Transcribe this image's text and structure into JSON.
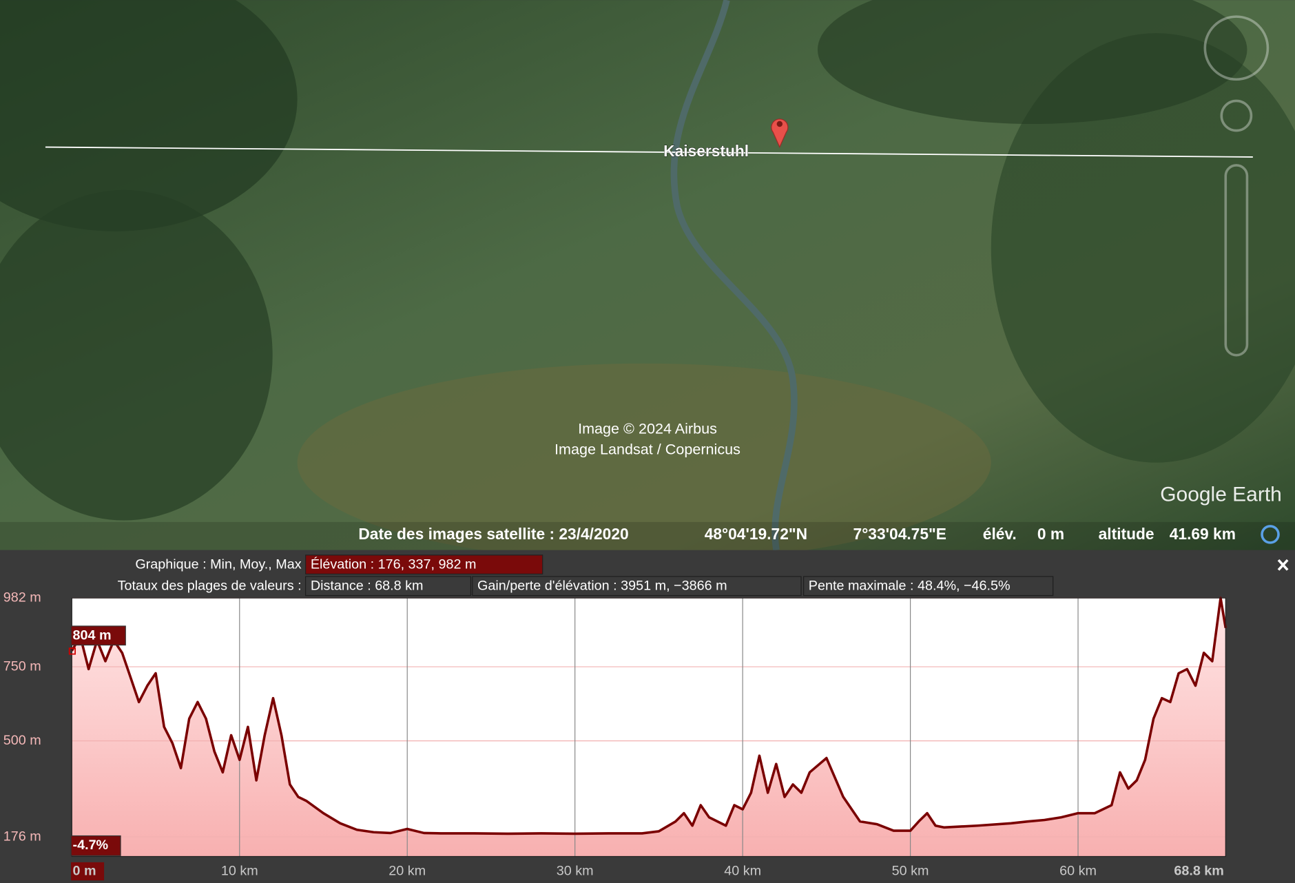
{
  "map": {
    "place_label": "Kaiserstuhl",
    "attribution": [
      "Image © 2024 Airbus",
      "Image Landsat / Copernicus"
    ],
    "logo": "Google Earth"
  },
  "status_bar": {
    "date": "Date des images satellite : 23/4/2020",
    "latitude": "48°04'19.72\"N",
    "longitude": "7°33'04.75\"E",
    "elevation_label": "élév.",
    "elevation": "0 m",
    "altitude_label": "altitude",
    "altitude": "41.69 km"
  },
  "profile_header": {
    "graph_label": "Graphique : Min, Moy., Max",
    "elevation_stats": "Élévation : 176, 337, 982 m",
    "totals_label": "Totaux des plages de valeurs :",
    "distance": "Distance : 68.8 km",
    "gain_loss": "Gain/perte d'élévation : 3951 m, −3866 m",
    "max_slope": "Pente maximale : 48.4%, −46.5%"
  },
  "chart_data": {
    "type": "area",
    "color": "#7a0000",
    "x": [
      0,
      0.5,
      1,
      1.5,
      2,
      2.5,
      3,
      3.5,
      4,
      4.5,
      5,
      5.5,
      6,
      6.5,
      7,
      7.5,
      8,
      8.5,
      9,
      9.5,
      10,
      10.5,
      11,
      11.5,
      12,
      12.5,
      13,
      13.5,
      14,
      15,
      16,
      17,
      18,
      19,
      20,
      21,
      22,
      24,
      26,
      28,
      30,
      32,
      34,
      35,
      36,
      36.5,
      37,
      37.5,
      38,
      39,
      39.5,
      40,
      40.5,
      41,
      41.5,
      42,
      42.5,
      43,
      43.5,
      44,
      45,
      46,
      47,
      48,
      49,
      50,
      50.5,
      51,
      51.5,
      52,
      54,
      56,
      57,
      58,
      59,
      60,
      61,
      62,
      62.5,
      63,
      63.5,
      64,
      64.5,
      65,
      65.5,
      66,
      66.5,
      67,
      67.5,
      68,
      68.5,
      68.8
    ],
    "values": [
      804,
      853,
      742,
      839,
      769,
      839,
      797,
      714,
      631,
      686,
      728,
      547,
      492,
      408,
      575,
      631,
      575,
      464,
      394,
      519,
      436,
      547,
      367,
      519,
      644,
      519,
      353,
      311,
      297,
      256,
      222,
      200,
      192,
      189,
      203,
      189,
      188,
      188,
      187,
      188,
      187,
      188,
      188,
      195,
      228,
      256,
      214,
      283,
      242,
      214,
      283,
      269,
      325,
      450,
      325,
      422,
      311,
      353,
      325,
      394,
      442,
      311,
      228,
      219,
      197,
      197,
      228,
      256,
      214,
      208,
      214,
      222,
      228,
      233,
      242,
      256,
      256,
      283,
      394,
      339,
      367,
      436,
      575,
      644,
      631,
      728,
      742,
      686,
      797,
      769,
      982,
      881
    ],
    "xlim": [
      0,
      68.8
    ],
    "ylim": [
      110,
      982
    ],
    "xticks": [
      {
        "value": 0,
        "label": "0 m"
      },
      {
        "value": 10,
        "label": "10 km"
      },
      {
        "value": 20,
        "label": "20 km"
      },
      {
        "value": 30,
        "label": "30 km"
      },
      {
        "value": 40,
        "label": "40 km"
      },
      {
        "value": 50,
        "label": "50 km"
      },
      {
        "value": 60,
        "label": "60 km"
      },
      {
        "value": 68.8,
        "label": "68.8 km"
      }
    ],
    "yticks": [
      {
        "value": 176,
        "label": "176 m"
      },
      {
        "value": 500,
        "label": "500 m"
      },
      {
        "value": 750,
        "label": "750 m"
      },
      {
        "value": 982,
        "label": "982 m"
      }
    ],
    "grid": true,
    "cursor": {
      "x": 0,
      "elevation": 804,
      "elevation_label": "804 m",
      "slope_label": "-4.7%"
    }
  }
}
